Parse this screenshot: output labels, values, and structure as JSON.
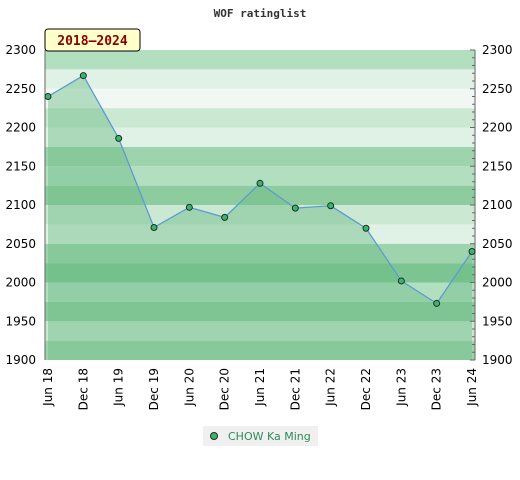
{
  "chart_data": {
    "type": "line",
    "title": "WOF ratinglist",
    "badge": "2018–2024",
    "categories": [
      "Jun 18",
      "Dec 18",
      "Jun 19",
      "Dec 19",
      "Jun 20",
      "Dec 20",
      "Jun 21",
      "Dec 21",
      "Jun 22",
      "Dec 22",
      "Jun 23",
      "Dec 23",
      "Jun 24"
    ],
    "series": [
      {
        "name": "CHOW Ka Ming",
        "values": [
          2240,
          2267,
          2186,
          2071,
          2097,
          2084,
          2128,
          2096,
          2099,
          2070,
          2002,
          1973,
          2040
        ]
      }
    ],
    "ylim": [
      1900,
      2300
    ],
    "yticks": [
      1900,
      1950,
      2000,
      2050,
      2100,
      2150,
      2200,
      2250,
      2300
    ],
    "grid": true,
    "legend_position": "bottom-center",
    "colors": {
      "line": "#5b9bd5",
      "area_fill": "#6dbd84",
      "marker_fill": "#3cb371",
      "marker_stroke": "#1f2f1f",
      "badge_bg": "#ffffcc",
      "badge_text": "#8b0000",
      "legend_text": "#2e8b57",
      "band_colors": [
        "#7cc593",
        "#8dcc9f",
        "#9ed4ad",
        "#b3dfc1",
        "#cbe8d3",
        "#e0f1e5",
        "#f1f8f3"
      ]
    }
  }
}
